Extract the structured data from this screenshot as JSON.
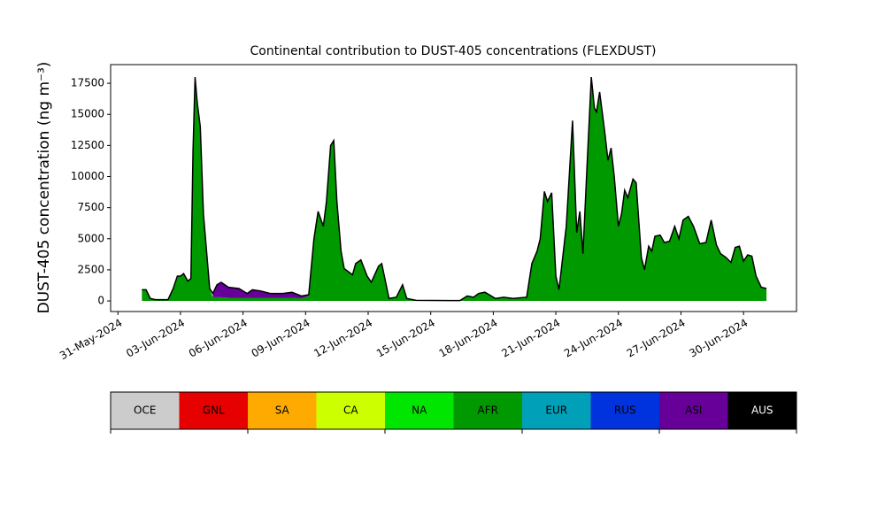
{
  "chart_data": {
    "type": "area",
    "stacked": true,
    "title": "Continental contribution to DUST-405 concentrations (FLEXDUST)",
    "ylabel": "DUST-405 concentration (ng m⁻³)",
    "xlim": [
      -0.35,
      32.54
    ],
    "xticks": [
      {
        "value": 0,
        "label": "31-May-2024"
      },
      {
        "value": 3,
        "label": "03-Jun-2024"
      },
      {
        "value": 6,
        "label": "06-Jun-2024"
      },
      {
        "value": 9,
        "label": "09-Jun-2024"
      },
      {
        "value": 12,
        "label": "12-Jun-2024"
      },
      {
        "value": 15,
        "label": "15-Jun-2024"
      },
      {
        "value": 18,
        "label": "18-Jun-2024"
      },
      {
        "value": 21,
        "label": "21-Jun-2024"
      },
      {
        "value": 24,
        "label": "24-Jun-2024"
      },
      {
        "value": 27,
        "label": "27-Jun-2024"
      },
      {
        "value": 30,
        "label": "30-Jun-2024"
      }
    ],
    "ylim": [
      -850,
      19000
    ],
    "yticks": [
      0,
      2500,
      5000,
      7500,
      10000,
      12500,
      15000,
      17500
    ],
    "x": [
      1.15,
      1.35,
      1.55,
      1.8,
      2.4,
      2.65,
      2.85,
      3.0,
      3.15,
      3.35,
      3.5,
      3.6,
      3.7,
      3.8,
      3.95,
      4.1,
      4.25,
      4.4,
      4.55,
      4.75,
      4.95,
      5.3,
      5.8,
      6.2,
      6.45,
      6.85,
      7.3,
      7.9,
      8.35,
      8.8,
      9.15,
      9.4,
      9.6,
      9.85,
      10.0,
      10.2,
      10.35,
      10.5,
      10.7,
      10.85,
      11.25,
      11.4,
      11.65,
      11.95,
      12.15,
      12.5,
      12.65,
      13.0,
      13.35,
      13.65,
      13.85,
      14.3,
      16.4,
      16.75,
      17.05,
      17.3,
      17.6,
      17.9,
      18.1,
      18.5,
      18.95,
      19.6,
      19.85,
      20.1,
      20.25,
      20.45,
      20.6,
      20.8,
      21.0,
      21.15,
      21.5,
      21.8,
      22.0,
      22.15,
      22.3,
      22.5,
      22.7,
      22.85,
      22.95,
      23.1,
      23.35,
      23.5,
      23.65,
      23.8,
      24.0,
      24.15,
      24.3,
      24.45,
      24.7,
      24.85,
      25.1,
      25.25,
      25.45,
      25.6,
      25.75,
      26.0,
      26.2,
      26.45,
      26.7,
      26.9,
      27.1,
      27.35,
      27.6,
      27.9,
      28.2,
      28.45,
      28.7,
      28.9,
      29.15,
      29.4,
      29.6,
      29.8,
      30.0,
      30.2,
      30.4,
      30.6,
      30.85,
      31.1
    ],
    "series": [
      {
        "name": "AFR",
        "color": "#009900",
        "values": [
          900,
          900,
          200,
          100,
          100,
          1000,
          2000,
          2000,
          2200,
          1600,
          1800,
          12000,
          18000,
          16000,
          14000,
          7000,
          4000,
          1000,
          300,
          300,
          300,
          250,
          250,
          250,
          250,
          250,
          250,
          250,
          250,
          200,
          400,
          5000,
          7200,
          6000,
          8000,
          12500,
          12900,
          8000,
          4000,
          2600,
          2100,
          3000,
          3300,
          2000,
          1500,
          2800,
          3000,
          200,
          300,
          1300,
          200,
          50,
          30,
          400,
          300,
          600,
          700,
          400,
          200,
          300,
          200,
          300,
          3000,
          4000,
          5000,
          8800,
          8000,
          8700,
          2000,
          900,
          6000,
          14500,
          5500,
          7200,
          3800,
          11000,
          18000,
          15500,
          15200,
          16800,
          13500,
          11300,
          12300,
          10000,
          6000,
          7000,
          8900,
          8300,
          9800,
          9500,
          3500,
          2500,
          4400,
          4000,
          5200,
          5300,
          4700,
          4800,
          6000,
          5000,
          6500,
          6800,
          6000,
          4600,
          4700,
          6500,
          4500,
          3800,
          3500,
          3100,
          4300,
          4400,
          3200,
          3700,
          3600,
          2000,
          1100,
          1000
        ]
      },
      {
        "name": "ASI",
        "color": "#660099",
        "values": [
          null,
          null,
          null,
          null,
          null,
          null,
          null,
          null,
          null,
          null,
          null,
          null,
          null,
          null,
          null,
          null,
          null,
          null,
          300,
          1000,
          1200,
          850,
          750,
          350,
          650,
          550,
          350,
          350,
          450,
          200,
          100,
          null,
          null,
          null,
          null,
          null,
          null,
          null,
          null,
          null,
          null,
          null,
          null,
          null,
          null,
          null,
          null,
          null,
          null,
          null,
          null,
          null,
          null,
          null,
          null,
          null,
          null,
          null,
          null,
          null,
          null,
          null,
          null,
          null,
          null,
          null,
          null,
          null,
          null,
          null,
          null,
          null,
          null,
          null,
          null,
          null,
          null,
          null,
          null,
          null,
          null,
          null,
          null,
          null,
          null,
          null,
          null,
          null,
          null,
          null,
          null,
          null,
          null,
          null,
          null,
          null,
          null,
          null,
          null,
          null,
          null,
          null,
          null,
          null,
          null,
          null,
          null,
          null,
          null,
          null,
          null,
          null,
          null,
          null,
          null,
          null,
          null,
          null
        ]
      }
    ],
    "legend": [
      {
        "name": "OCE",
        "color": "#cccccc"
      },
      {
        "name": "GNL",
        "color": "#e60000"
      },
      {
        "name": "SA",
        "color": "#ffaa00"
      },
      {
        "name": "CA",
        "color": "#ccff00"
      },
      {
        "name": "NA",
        "color": "#00e600"
      },
      {
        "name": "AFR",
        "color": "#009900"
      },
      {
        "name": "EUR",
        "color": "#00a0b8"
      },
      {
        "name": "RUS",
        "color": "#0033dd"
      },
      {
        "name": "ASI",
        "color": "#660099"
      },
      {
        "name": "AUS",
        "color": "#000000"
      }
    ]
  }
}
